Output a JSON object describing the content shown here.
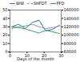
{
  "chart_data": {
    "type": "line",
    "x_label": "Days of the month",
    "x": [
      1,
      5,
      9,
      13,
      17,
      21,
      25,
      29
    ],
    "xlim": [
      0,
      30
    ],
    "xticks": [
      0,
      10,
      20,
      30
    ],
    "ylim": [
      0,
      50
    ],
    "yticks": [
      0,
      10,
      20,
      30,
      40,
      50
    ],
    "y2lim": [
      60000,
      160000
    ],
    "y2ticks": [
      60000,
      80000,
      100000,
      120000,
      140000,
      160000
    ],
    "series": [
      {
        "name": "WW",
        "color": "#3a6fc4",
        "line_style": "solid",
        "values": [
          30,
          33,
          28,
          35,
          38,
          25,
          27,
          32
        ]
      },
      {
        "name": "SHFDT",
        "color": "#8c8c8c",
        "line_style": "dashed",
        "values": [
          28,
          30,
          31,
          33,
          30,
          28,
          29,
          31
        ]
      },
      {
        "name": "PFD",
        "color": "#3aa35a",
        "line_style": "solid",
        "axis": "y2",
        "values": [
          120000,
          118000,
          115000,
          110000,
          105000,
          112000,
          108000,
          104000
        ]
      }
    ],
    "legend": "top"
  }
}
